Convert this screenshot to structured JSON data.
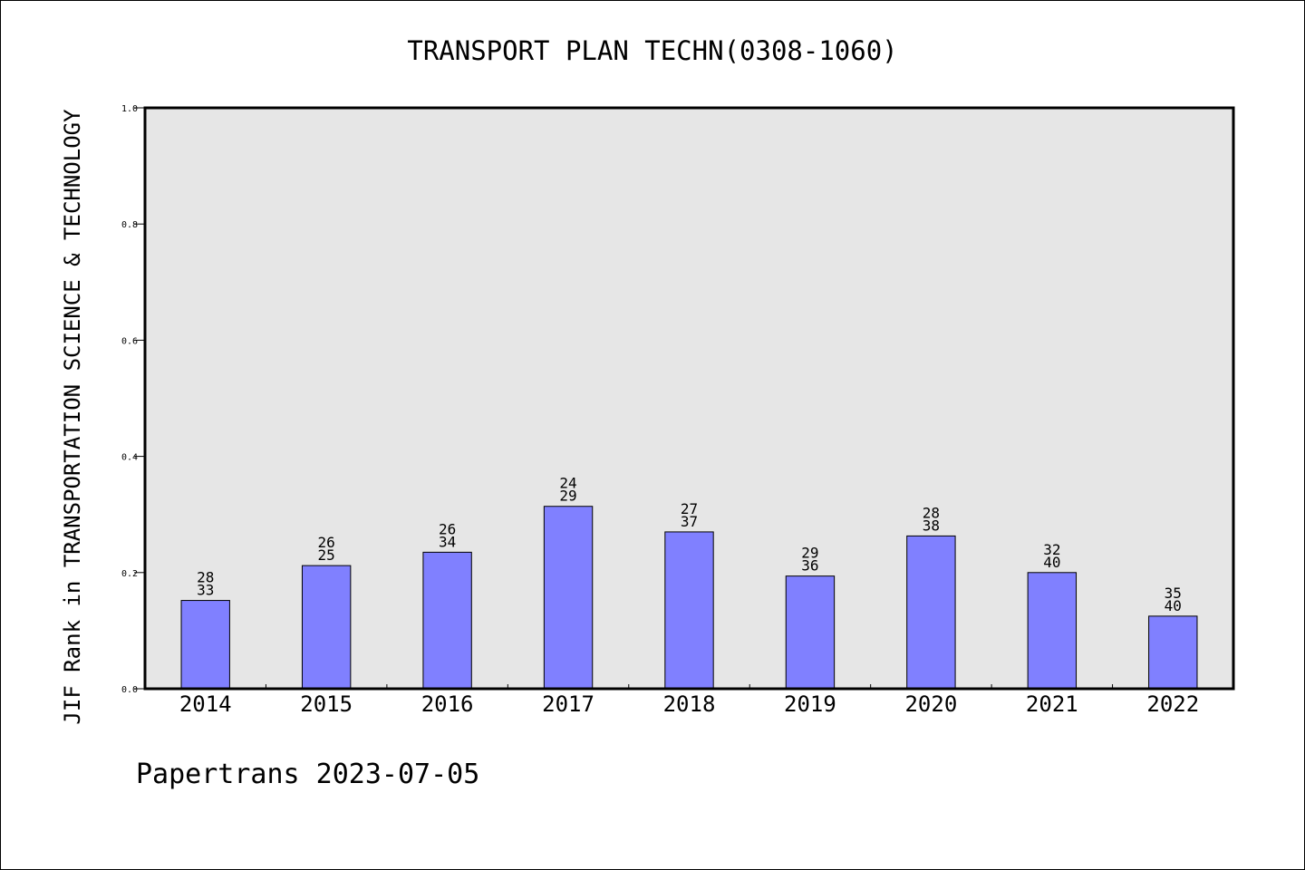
{
  "chart_data": {
    "type": "bar",
    "title": "TRANSPORT PLAN TECHN(0308-1060)",
    "xlabel": "",
    "ylabel": "JIF Rank in TRANSPORTATION SCIENCE & TECHNOLOGY",
    "ylim": [
      0,
      1.0
    ],
    "yticks": [
      "0.0",
      "0.2",
      "0.4",
      "0.6",
      "0.8",
      "1.0"
    ],
    "categories": [
      "2014",
      "2015",
      "2016",
      "2017",
      "2018",
      "2019",
      "2020",
      "2021",
      "2022"
    ],
    "values": [
      0.152,
      0.212,
      0.235,
      0.314,
      0.27,
      0.194,
      0.263,
      0.2,
      0.125
    ],
    "labels_top": [
      "28",
      "26",
      "26",
      "24",
      "27",
      "29",
      "28",
      "32",
      "35"
    ],
    "labels_bottom": [
      "33",
      "25",
      "34",
      "29",
      "37",
      "36",
      "38",
      "40",
      "40"
    ],
    "grid": false,
    "colors": {
      "bar": "#8080ff",
      "plot_bg": "#e6e6e6"
    }
  },
  "footer": "Papertrans 2023-07-05"
}
